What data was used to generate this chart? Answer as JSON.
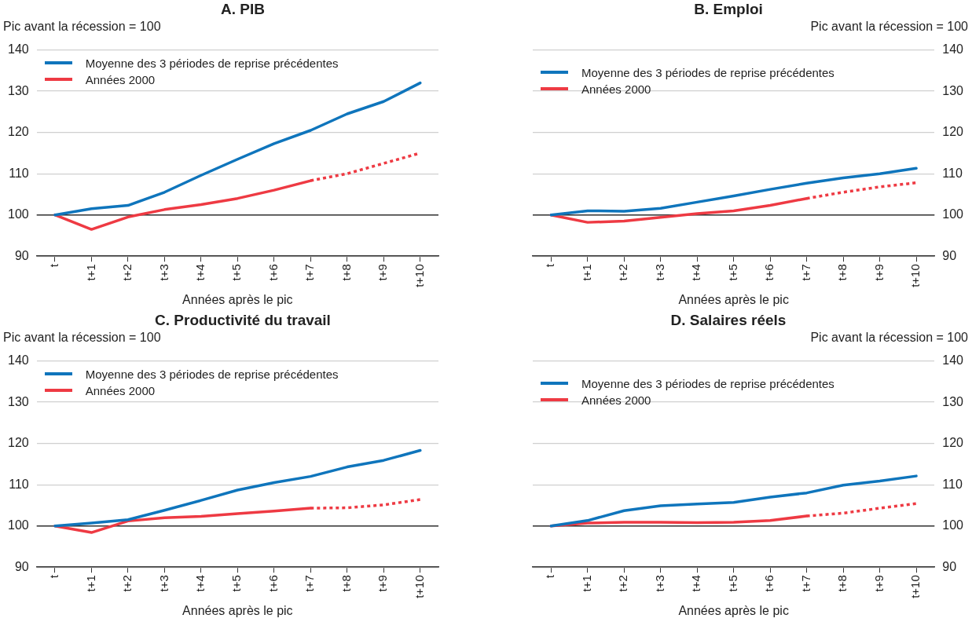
{
  "chart_data": [
    {
      "type": "line",
      "title": "A. PIB",
      "ylabel": "Pic avant la récession = 100",
      "xlabel": "Années après le pic",
      "categories": [
        "t",
        "t+1",
        "t+2",
        "t+3",
        "t+4",
        "t+5",
        "t+6",
        "t+7",
        "t+8",
        "t+9",
        "t+10"
      ],
      "ylim": [
        90,
        140
      ],
      "yticks": [
        90,
        100,
        110,
        120,
        130,
        140
      ],
      "grid": "y",
      "legend": "top left",
      "marker": "none",
      "ref_lines": [
        {
          "axis": "y",
          "value": 100,
          "color": "#333333"
        }
      ],
      "series": [
        {
          "name": "Moyenne des 3 périodes de reprise précédentes",
          "color": "#0f75bc",
          "line_style": "solid",
          "values": [
            100,
            101.5,
            102.3,
            105.5,
            109.6,
            113.5,
            117.3,
            120.5,
            124.5,
            127.5,
            132
          ]
        },
        {
          "name": "Années 2000",
          "color": "#ee3a43",
          "line_style": "solid",
          "values": [
            100,
            96.5,
            99.5,
            101.3,
            102.5,
            104,
            106,
            108.3,
            null,
            null,
            null
          ]
        },
        {
          "color": "#ee3a43",
          "line_style": "dotted",
          "values": [
            null,
            null,
            null,
            null,
            null,
            null,
            null,
            108.3,
            110,
            112.5,
            115
          ]
        }
      ]
    },
    {
      "type": "line",
      "title": "B. Emploi",
      "ylabel": "Pic avant la récession = 100",
      "xlabel": "Années après le pic",
      "categories": [
        "t",
        "t+1",
        "t+2",
        "t+3",
        "t+4",
        "t+5",
        "t+6",
        "t+7",
        "t+8",
        "t+9",
        "t+10"
      ],
      "ylim": [
        90,
        140
      ],
      "yticks": [
        90,
        100,
        110,
        120,
        130,
        140
      ],
      "grid": "y",
      "legend": "top left",
      "marker": "none",
      "ref_lines": [
        {
          "axis": "y",
          "value": 100,
          "color": "#333333"
        }
      ],
      "series": [
        {
          "name": "Moyenne des 3 périodes de reprise précédentes",
          "color": "#0f75bc",
          "line_style": "solid",
          "values": [
            100,
            101,
            100.9,
            101.6,
            103.1,
            104.6,
            106.2,
            107.7,
            109,
            110,
            111.3
          ]
        },
        {
          "name": "Années 2000",
          "color": "#ee3a43",
          "line_style": "solid",
          "values": [
            100,
            98.2,
            98.5,
            99.4,
            100.3,
            101,
            102.3,
            104,
            null,
            null,
            null
          ]
        },
        {
          "color": "#ee3a43",
          "line_style": "dotted",
          "values": [
            null,
            null,
            null,
            null,
            null,
            null,
            null,
            104,
            105.5,
            106.8,
            107.8
          ]
        }
      ]
    },
    {
      "type": "line",
      "title": "C. Productivité du travail",
      "ylabel": "Pic avant la récession = 100",
      "xlabel": "Années après le pic",
      "categories": [
        "t",
        "t+1",
        "t+2",
        "t+3",
        "t+4",
        "t+5",
        "t+6",
        "t+7",
        "t+8",
        "t+9",
        "t+10"
      ],
      "ylim": [
        90,
        140
      ],
      "yticks": [
        90,
        100,
        110,
        120,
        130,
        140
      ],
      "grid": "y",
      "legend": "top left",
      "marker": "none",
      "ref_lines": [
        {
          "axis": "y",
          "value": 100,
          "color": "#333333"
        }
      ],
      "series": [
        {
          "name": "Moyenne des 3 périodes de reprise précédentes",
          "color": "#0f75bc",
          "line_style": "solid",
          "values": [
            100,
            100.7,
            101.5,
            103.8,
            106.2,
            108.7,
            110.5,
            112,
            114.3,
            115.9,
            118.3
          ]
        },
        {
          "name": "Années 2000",
          "color": "#ee3a43",
          "line_style": "solid",
          "values": [
            100,
            98.4,
            101.2,
            102,
            102.3,
            103,
            103.6,
            104.3,
            null,
            null,
            null
          ]
        },
        {
          "color": "#ee3a43",
          "line_style": "dotted",
          "values": [
            null,
            null,
            null,
            null,
            null,
            null,
            null,
            104.3,
            104.4,
            105.1,
            106.4
          ]
        }
      ]
    },
    {
      "type": "line",
      "title": "D. Salaires réels",
      "ylabel": "Pic avant la récession = 100",
      "xlabel": "Années après le pic",
      "categories": [
        "t",
        "t+1",
        "t+2",
        "t+3",
        "t+4",
        "t+5",
        "t+6",
        "t+7",
        "t+8",
        "t+9",
        "t+10"
      ],
      "ylim": [
        90,
        140
      ],
      "yticks": [
        90,
        100,
        110,
        120,
        130,
        140
      ],
      "grid": "y",
      "legend": "top left",
      "marker": "none",
      "ref_lines": [
        {
          "axis": "y",
          "value": 100,
          "color": "#333333"
        }
      ],
      "series": [
        {
          "name": "Moyenne des 3 périodes de reprise précédentes",
          "color": "#0f75bc",
          "line_style": "solid",
          "values": [
            100,
            101.3,
            103.7,
            104.9,
            105.3,
            105.7,
            107,
            108,
            109.9,
            110.9,
            112.1
          ]
        },
        {
          "name": "Années 2000",
          "color": "#ee3a43",
          "line_style": "solid",
          "values": [
            100,
            100.7,
            100.9,
            100.9,
            100.8,
            100.9,
            101.3,
            102.4,
            null,
            null,
            null
          ]
        },
        {
          "color": "#ee3a43",
          "line_style": "dotted",
          "values": [
            null,
            null,
            null,
            null,
            null,
            null,
            null,
            102.4,
            103.1,
            104.3,
            105.4
          ]
        }
      ]
    }
  ]
}
